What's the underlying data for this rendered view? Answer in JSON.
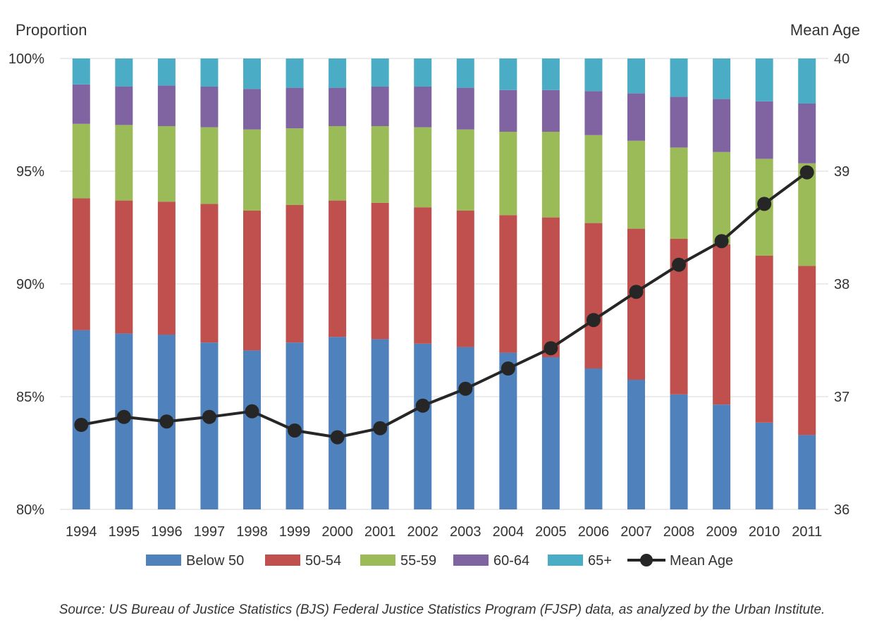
{
  "chart_data": {
    "type": "bar",
    "stacked": true,
    "categories": [
      "1994",
      "1995",
      "1996",
      "1997",
      "1998",
      "1999",
      "2000",
      "2001",
      "2002",
      "2003",
      "2004",
      "2005",
      "2006",
      "2007",
      "2008",
      "2009",
      "2010",
      "2011"
    ],
    "series": [
      {
        "name": "Below 50",
        "color": "#4F81BD",
        "values": [
          87.95,
          87.8,
          87.75,
          87.4,
          87.05,
          87.4,
          87.65,
          87.55,
          87.35,
          87.2,
          86.95,
          86.75,
          86.25,
          85.75,
          85.1,
          84.65,
          83.85,
          83.3
        ]
      },
      {
        "name": "50-54",
        "color": "#C0504D",
        "values": [
          5.85,
          5.9,
          5.9,
          6.15,
          6.2,
          6.1,
          6.05,
          6.05,
          6.05,
          6.05,
          6.1,
          6.2,
          6.45,
          6.7,
          6.9,
          7.1,
          7.4,
          7.5
        ]
      },
      {
        "name": "55-59",
        "color": "#9BBB59",
        "values": [
          3.3,
          3.35,
          3.35,
          3.4,
          3.6,
          3.4,
          3.3,
          3.4,
          3.55,
          3.6,
          3.7,
          3.8,
          3.9,
          3.9,
          4.05,
          4.1,
          4.3,
          4.55
        ]
      },
      {
        "name": "60-64",
        "color": "#8064A2",
        "values": [
          1.75,
          1.7,
          1.8,
          1.8,
          1.8,
          1.8,
          1.7,
          1.75,
          1.8,
          1.85,
          1.85,
          1.85,
          1.95,
          2.1,
          2.25,
          2.35,
          2.55,
          2.65
        ]
      },
      {
        "name": "65+",
        "color": "#4BACC6",
        "values": [
          1.15,
          1.25,
          1.2,
          1.25,
          1.35,
          1.3,
          1.3,
          1.25,
          1.25,
          1.3,
          1.4,
          1.4,
          1.45,
          1.55,
          1.7,
          1.8,
          1.9,
          2.0
        ]
      }
    ],
    "line_series": {
      "name": "Mean Age",
      "color": "#262626",
      "axis": "right",
      "values": [
        36.75,
        36.82,
        36.78,
        36.82,
        36.87,
        36.7,
        36.64,
        36.72,
        36.92,
        37.07,
        37.25,
        37.43,
        37.68,
        37.93,
        38.17,
        38.38,
        38.71,
        38.99
      ]
    },
    "ylabel": "Proportion",
    "ylim": [
      80,
      100
    ],
    "yticks": [
      "80%",
      "85%",
      "90%",
      "95%",
      "100%"
    ],
    "y2label": "Mean Age",
    "y2lim": [
      36,
      40
    ],
    "y2ticks": [
      "36",
      "37",
      "38",
      "39",
      "40"
    ],
    "grid": true,
    "legend_position": "bottom",
    "source": "Source: US Bureau of Justice Statistics (BJS) Federal Justice Statistics Program (FJSP) data, as analyzed by the Urban Institute."
  }
}
